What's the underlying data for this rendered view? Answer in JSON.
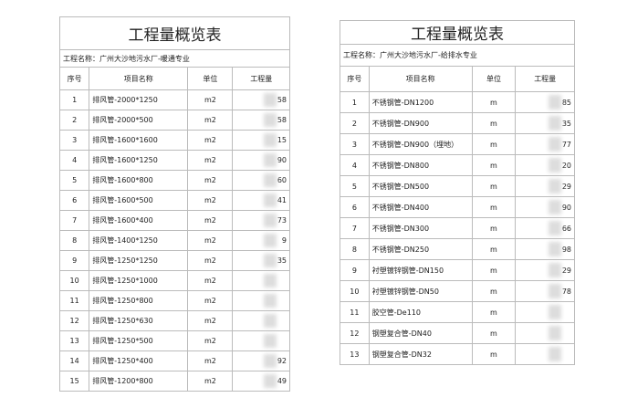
{
  "left": {
    "title": "工程量概览表",
    "project": "工程名称：广州大沙地污水厂-暖通专业",
    "headers": [
      "序号",
      "项目名称",
      "单位",
      "工程量"
    ],
    "rows": [
      [
        "1",
        "排风管-2000*1250",
        "m2",
        "58"
      ],
      [
        "2",
        "排风管-2000*500",
        "m2",
        "58"
      ],
      [
        "3",
        "排风管-1600*1600",
        "m2",
        "15"
      ],
      [
        "4",
        "排风管-1600*1250",
        "m2",
        "90"
      ],
      [
        "5",
        "排风管-1600*800",
        "m2",
        "60"
      ],
      [
        "6",
        "排风管-1600*500",
        "m2",
        "41"
      ],
      [
        "7",
        "排风管-1600*400",
        "m2",
        "73"
      ],
      [
        "8",
        "排风管-1400*1250",
        "m2",
        "9"
      ],
      [
        "9",
        "排风管-1250*1250",
        "m2",
        "35"
      ],
      [
        "10",
        "排风管-1250*1000",
        "m2"
      ],
      [
        "11",
        "排风管-1250*800",
        "m2"
      ],
      [
        "12",
        "排风管-1250*630",
        "m2"
      ],
      [
        "13",
        "排风管-1250*500",
        "m2"
      ],
      [
        "14",
        "排风管-1250*400",
        "m2",
        "92"
      ],
      [
        "15",
        "排风管-1200*800",
        "m2",
        "49"
      ]
    ]
  },
  "right": {
    "title": "工程量概览表",
    "project": "工程名称：广州大沙地污水厂-给排水专业",
    "headers": [
      "序号",
      "项目名称",
      "单位",
      "工程量"
    ],
    "rows": [
      [
        "1",
        "不锈钢管-DN1200",
        "m",
        "85"
      ],
      [
        "2",
        "不锈钢管-DN900",
        "m",
        "35"
      ],
      [
        "3",
        "不锈钢管-DN900（埋地）",
        "m",
        "77"
      ],
      [
        "4",
        "不锈钢管-DN800",
        "m",
        "20"
      ],
      [
        "5",
        "不锈钢管-DN500",
        "m",
        "29"
      ],
      [
        "6",
        "不锈钢管-DN400",
        "m",
        "90"
      ],
      [
        "7",
        "不锈钢管-DN300",
        "m",
        "66"
      ],
      [
        "8",
        "不锈钢管-DN250",
        "m",
        "98"
      ],
      [
        "9",
        "衬塑镀锌钢管-DN150",
        "m",
        "29"
      ],
      [
        "10",
        "衬塑镀锌钢管-DN50",
        "m",
        "78"
      ],
      [
        "11",
        "胶空管-De110",
        "m"
      ],
      [
        "12",
        "钢塑复合管-DN40",
        "m"
      ],
      [
        "13",
        "钢塑复合管-DN32",
        "m"
      ]
    ]
  }
}
